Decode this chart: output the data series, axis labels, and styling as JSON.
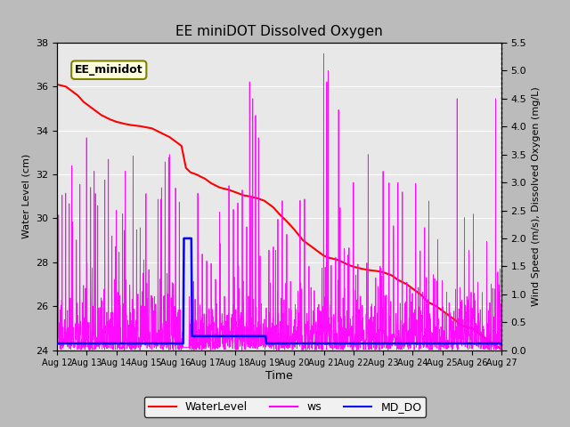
{
  "title": "EE miniDOT Dissolved Oxygen",
  "xlabel": "Time",
  "ylabel_left": "Water Level (cm)",
  "ylabel_right": "Wind Speed (m/s), Dissolved Oxygen (mg/L)",
  "annotation": "EE_minidot",
  "ylim_left": [
    24,
    38
  ],
  "ylim_right": [
    0.0,
    5.5
  ],
  "yticks_left": [
    24,
    26,
    28,
    30,
    32,
    34,
    36,
    38
  ],
  "yticks_right": [
    0.0,
    0.5,
    1.0,
    1.5,
    2.0,
    2.5,
    3.0,
    3.5,
    4.0,
    4.5,
    5.0,
    5.5
  ],
  "plot_bg_color": "#e8e8e8",
  "fig_bg_color": "#c8c8c8",
  "xticklabels": [
    "Aug 12",
    "Aug 13",
    "Aug 14",
    "Aug 15",
    "Aug 16",
    "Aug 17",
    "Aug 18",
    "Aug 19",
    "Aug 20",
    "Aug 21",
    "Aug 22",
    "Aug 23",
    "Aug 24",
    "Aug 25",
    "Aug 26",
    "Aug 27"
  ],
  "water_level_x": [
    0,
    0.15,
    0.3,
    0.5,
    0.7,
    0.9,
    1.1,
    1.3,
    1.5,
    1.8,
    2.0,
    2.3,
    2.5,
    2.8,
    3.0,
    3.2,
    3.5,
    3.8,
    4.0,
    4.2,
    4.35,
    4.5,
    4.7,
    5.0,
    5.2,
    5.5,
    5.8,
    6.0,
    6.3,
    6.5,
    6.8,
    7.0,
    7.3,
    7.5,
    7.8,
    8.0,
    8.3,
    8.5,
    8.8,
    9.0,
    9.2,
    9.5,
    9.8,
    10.0,
    10.3,
    10.5,
    10.8,
    11.0,
    11.3,
    11.5,
    11.8,
    12.0,
    12.3,
    12.5,
    12.8,
    13.0,
    13.2,
    13.3,
    13.5,
    13.6,
    13.8,
    14.0,
    14.2,
    14.5,
    14.8,
    15.0
  ],
  "water_level_y": [
    36.1,
    36.05,
    36.0,
    35.8,
    35.6,
    35.3,
    35.1,
    34.9,
    34.7,
    34.5,
    34.4,
    34.3,
    34.25,
    34.2,
    34.15,
    34.1,
    33.9,
    33.7,
    33.5,
    33.3,
    32.3,
    32.1,
    32.0,
    31.8,
    31.6,
    31.4,
    31.3,
    31.2,
    31.05,
    31.0,
    30.9,
    30.8,
    30.5,
    30.2,
    29.8,
    29.5,
    29.0,
    28.8,
    28.5,
    28.3,
    28.2,
    28.1,
    27.9,
    27.8,
    27.7,
    27.65,
    27.6,
    27.55,
    27.4,
    27.2,
    27.0,
    26.8,
    26.5,
    26.2,
    26.0,
    25.8,
    25.6,
    25.5,
    25.3,
    25.15,
    25.05,
    25.0,
    24.8,
    24.5,
    24.2,
    24.05
  ]
}
